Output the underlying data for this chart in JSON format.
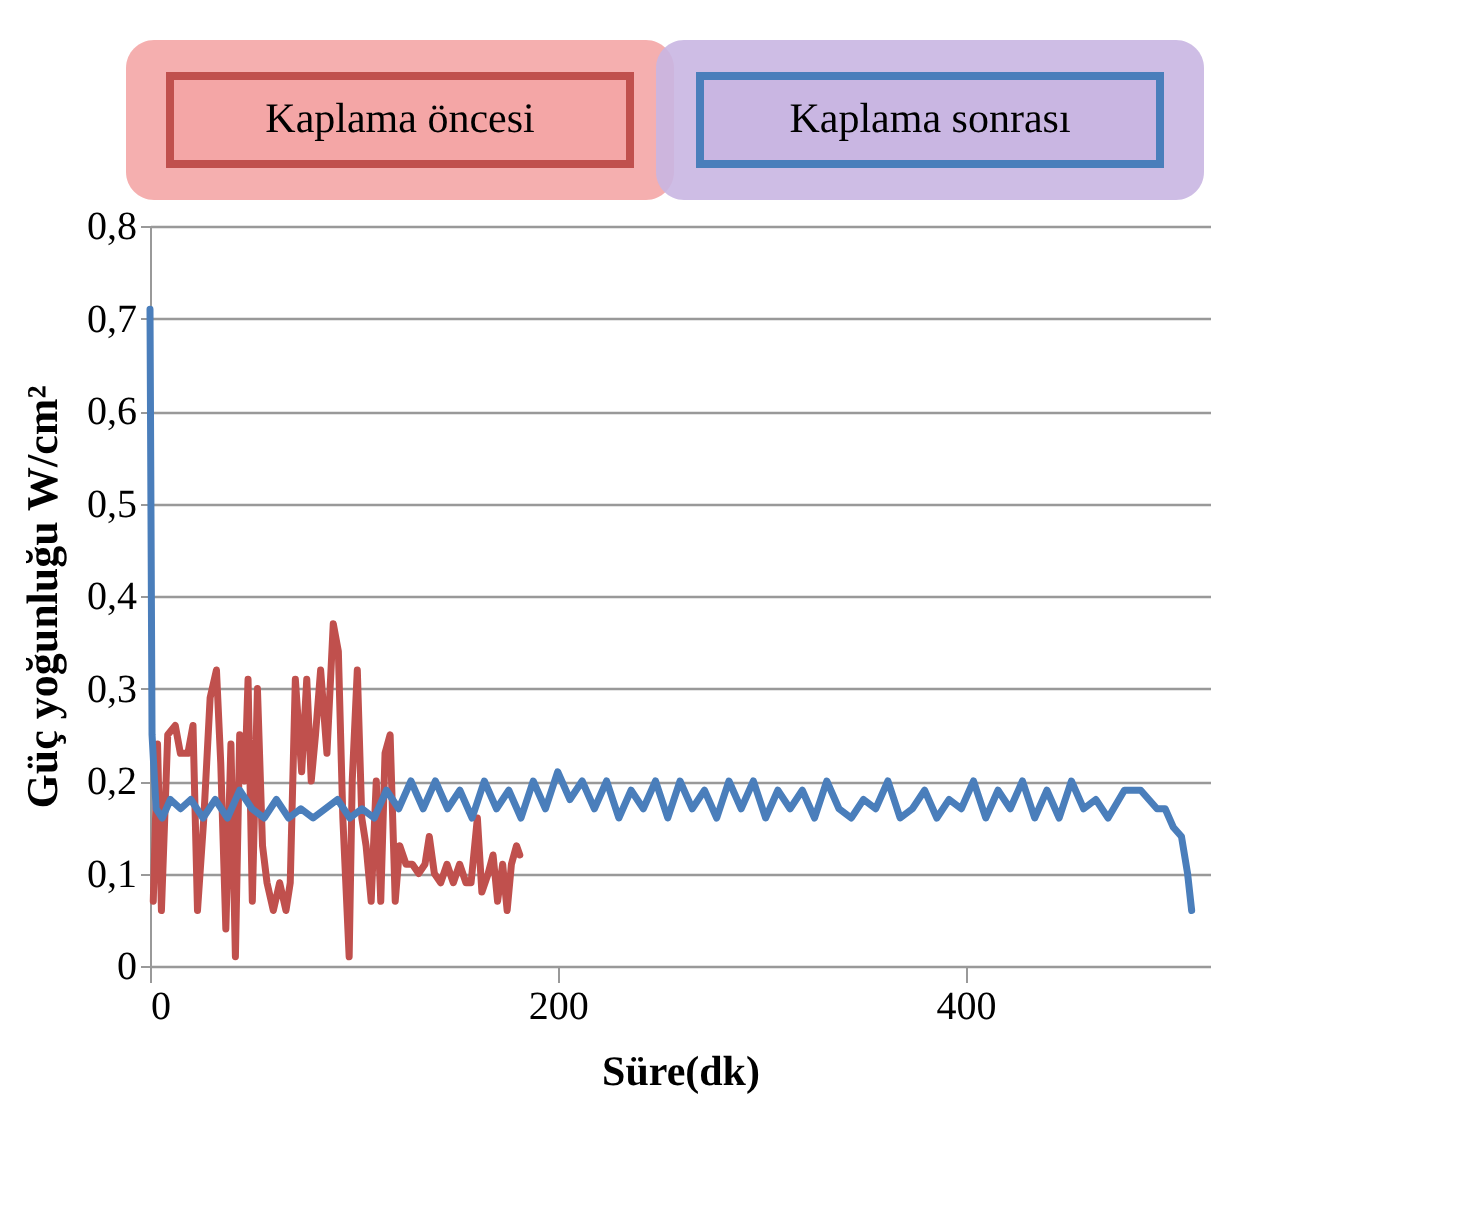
{
  "chart_data": {
    "type": "line",
    "xlabel": "Süre(dk)",
    "ylabel": "Güç yoğunluğu  W/cm²",
    "xlim": [
      0,
      520
    ],
    "xticks": [
      0,
      200,
      400
    ],
    "ylim": [
      0,
      0.8
    ],
    "yticks": [
      {
        "value": 0,
        "label": "0"
      },
      {
        "value": 0.1,
        "label": "0,1"
      },
      {
        "value": 0.2,
        "label": "0,2"
      },
      {
        "value": 0.3,
        "label": "0,3"
      },
      {
        "value": 0.4,
        "label": "0,4"
      },
      {
        "value": 0.5,
        "label": "0,5"
      },
      {
        "value": 0.6,
        "label": "0,6"
      },
      {
        "value": 0.7,
        "label": "0,7"
      },
      {
        "value": 0.8,
        "label": "0,8"
      }
    ],
    "grid": "y",
    "legend": "top",
    "marker": "none",
    "line_style": "solid",
    "series": [
      {
        "name": "Kaplama öncesi",
        "color": "#c0504d",
        "x": [
          1.6,
          3.7,
          5.6,
          8.7,
          12.4,
          14.9,
          18.6,
          21.1,
          23.3,
          26.4,
          29.5,
          32.6,
          34.7,
          37.2,
          39.7,
          41.9,
          44.0,
          46.5,
          48.1,
          50.2,
          52.7,
          55.2,
          57.4,
          60.5,
          63.6,
          66.7,
          68.8,
          71.3,
          74.4,
          76.9,
          79.1,
          81.2,
          83.7,
          86.8,
          89.9,
          92.4,
          94.6,
          97.7,
          99.2,
          101.7,
          103.9,
          106.0,
          108.5,
          111.0,
          113.2,
          115.3,
          117.8,
          120.3,
          122.5,
          125.6,
          128.7,
          131.8,
          134.9,
          137.0,
          139.5,
          142.6,
          145.7,
          148.8,
          151.9,
          155.0,
          157.5,
          160.6,
          162.8,
          165.9,
          168.3,
          170.5,
          173.0,
          175.2,
          177.3,
          179.8,
          181.4
        ],
        "values": [
          0.07,
          0.24,
          0.06,
          0.25,
          0.26,
          0.23,
          0.23,
          0.26,
          0.06,
          0.16,
          0.29,
          0.32,
          0.22,
          0.04,
          0.24,
          0.01,
          0.25,
          0.2,
          0.31,
          0.07,
          0.3,
          0.13,
          0.09,
          0.06,
          0.09,
          0.06,
          0.09,
          0.31,
          0.21,
          0.31,
          0.2,
          0.25,
          0.32,
          0.23,
          0.37,
          0.34,
          0.16,
          0.01,
          0.2,
          0.32,
          0.16,
          0.13,
          0.07,
          0.2,
          0.07,
          0.23,
          0.25,
          0.07,
          0.13,
          0.11,
          0.11,
          0.1,
          0.11,
          0.14,
          0.1,
          0.09,
          0.11,
          0.09,
          0.11,
          0.09,
          0.09,
          0.16,
          0.08,
          0.1,
          0.12,
          0.07,
          0.11,
          0.06,
          0.11,
          0.13,
          0.12
        ]
      },
      {
        "name": "Kaplama sonrası",
        "color": "#4a7ebb",
        "x": [
          0,
          1,
          3,
          6,
          10,
          15,
          20,
          26,
          32,
          38,
          44,
          50,
          56,
          62,
          68,
          74,
          80,
          86,
          92,
          98,
          104,
          110,
          116,
          122,
          128,
          134,
          140,
          146,
          152,
          158,
          164,
          170,
          176,
          182,
          188,
          194,
          200,
          206,
          212,
          218,
          224,
          230,
          236,
          242,
          248,
          254,
          260,
          266,
          272,
          278,
          284,
          290,
          296,
          302,
          308,
          314,
          320,
          326,
          332,
          338,
          344,
          350,
          356,
          362,
          368,
          374,
          380,
          386,
          392,
          398,
          404,
          410,
          416,
          422,
          428,
          434,
          440,
          446,
          452,
          458,
          464,
          470,
          478,
          486,
          490,
          494,
          498,
          502,
          506,
          509,
          511
        ],
        "values": [
          0.71,
          0.25,
          0.17,
          0.16,
          0.18,
          0.17,
          0.18,
          0.16,
          0.18,
          0.16,
          0.19,
          0.17,
          0.16,
          0.18,
          0.16,
          0.17,
          0.16,
          0.17,
          0.18,
          0.16,
          0.17,
          0.16,
          0.19,
          0.17,
          0.2,
          0.17,
          0.2,
          0.17,
          0.19,
          0.16,
          0.2,
          0.17,
          0.19,
          0.16,
          0.2,
          0.17,
          0.21,
          0.18,
          0.2,
          0.17,
          0.2,
          0.16,
          0.19,
          0.17,
          0.2,
          0.16,
          0.2,
          0.17,
          0.19,
          0.16,
          0.2,
          0.17,
          0.2,
          0.16,
          0.19,
          0.17,
          0.19,
          0.16,
          0.2,
          0.17,
          0.16,
          0.18,
          0.17,
          0.2,
          0.16,
          0.17,
          0.19,
          0.16,
          0.18,
          0.17,
          0.2,
          0.16,
          0.19,
          0.17,
          0.2,
          0.16,
          0.19,
          0.16,
          0.2,
          0.17,
          0.18,
          0.16,
          0.19,
          0.19,
          0.18,
          0.17,
          0.17,
          0.15,
          0.14,
          0.1,
          0.06
        ]
      }
    ]
  }
}
